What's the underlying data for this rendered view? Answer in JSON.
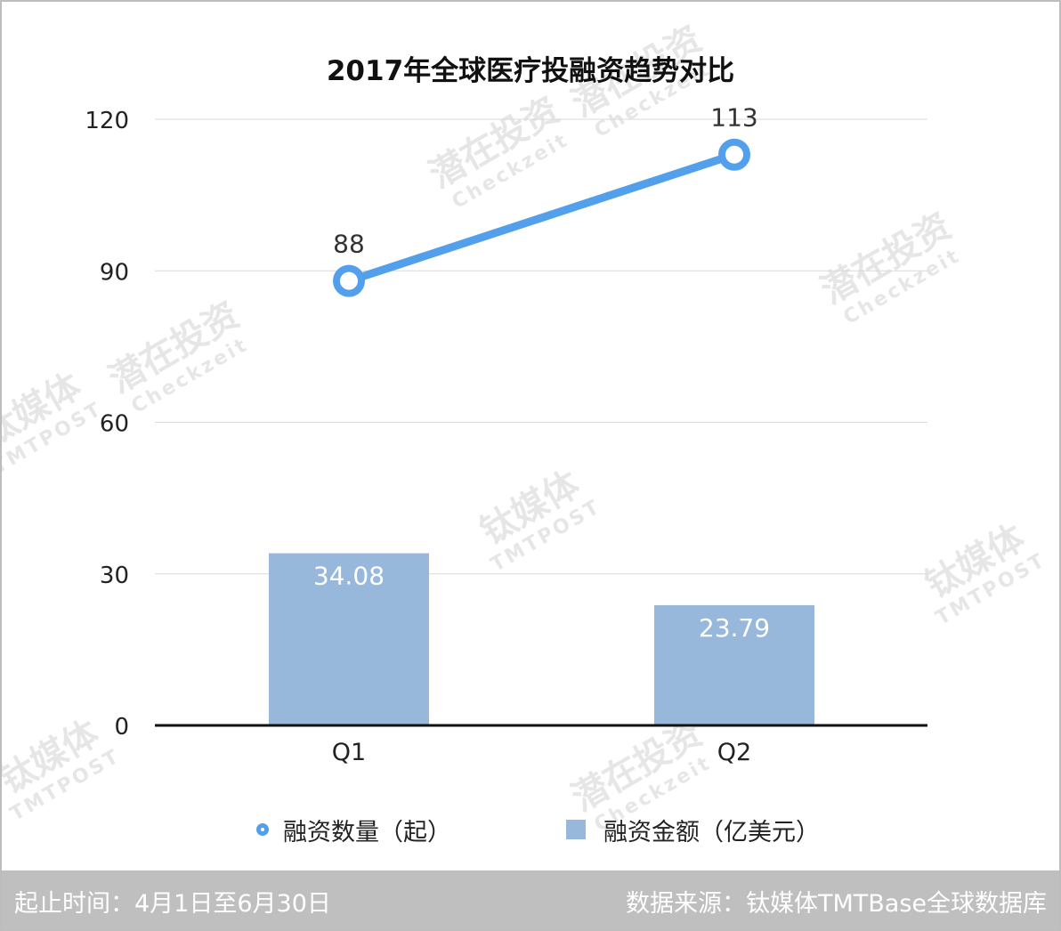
{
  "chart_data": {
    "type": "bar",
    "title": "2017年全球医疗投融资趋势对比",
    "categories": [
      "Q1",
      "Q2"
    ],
    "y_ticks": [
      "0",
      "30",
      "60",
      "90",
      "120"
    ],
    "ylim": [
      0,
      120
    ],
    "grid": true,
    "legend_position": "bottom",
    "series": [
      {
        "name": "融资数量（起）",
        "type": "line",
        "values": [
          88,
          113
        ],
        "labels": [
          "88",
          "113"
        ],
        "color": "#52a0ec"
      },
      {
        "name": "融资金额（亿美元）",
        "type": "bar",
        "values": [
          34.08,
          23.79
        ],
        "labels": [
          "34.08",
          "23.79"
        ],
        "color": "#97b8da"
      }
    ]
  },
  "footer": {
    "period": "起止时间：4月1日至6月30日",
    "source": "数据来源：钛媒体TMTBase全球数据库"
  },
  "watermarks": [
    "潜在投资",
    "Checkzeit",
    "钛媒体",
    "TMTPOST"
  ]
}
